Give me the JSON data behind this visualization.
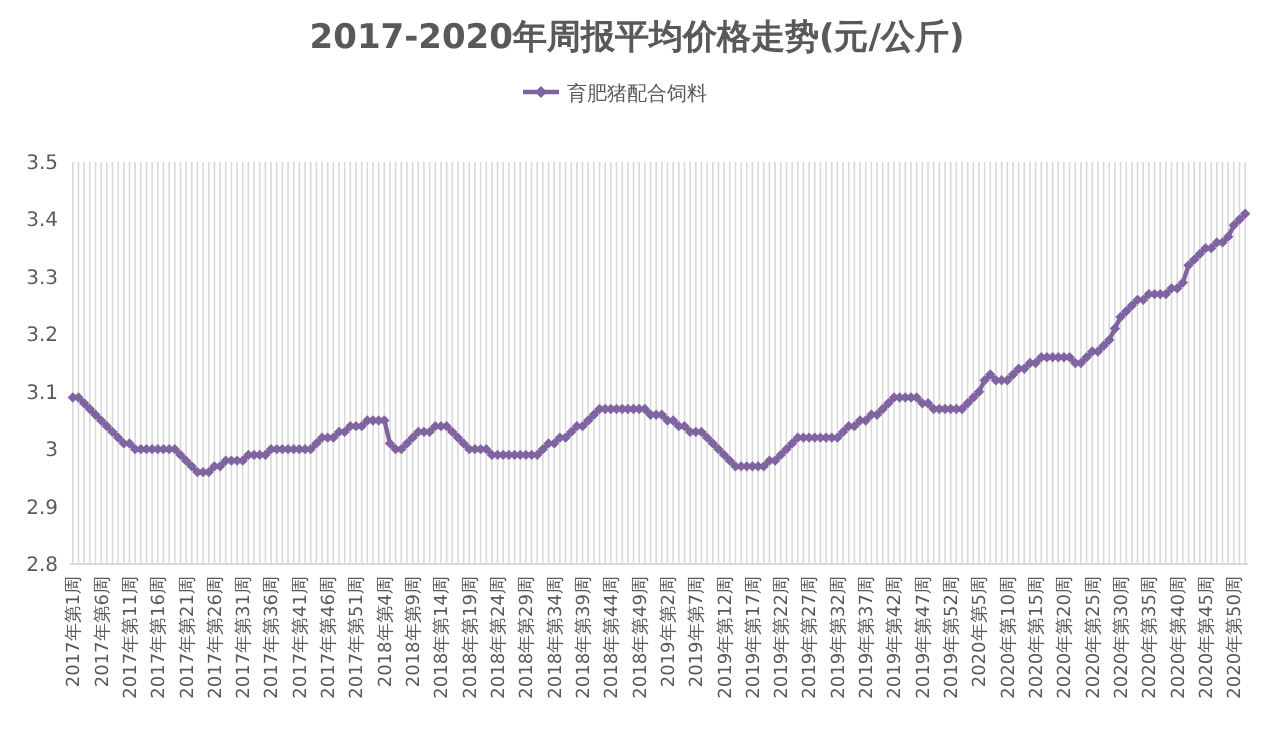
{
  "chart_data": {
    "type": "line",
    "title": "2017-2020年周报平均价格走势(元/公斤)",
    "categories": [
      "2017年第1周",
      null,
      null,
      null,
      null,
      "2017年第6周",
      null,
      null,
      null,
      null,
      "2017年第11周",
      null,
      null,
      null,
      null,
      "2017年第16周",
      null,
      null,
      null,
      null,
      "2017年第21周",
      null,
      null,
      null,
      null,
      "2017年第26周",
      null,
      null,
      null,
      null,
      "2017年第31周",
      null,
      null,
      null,
      null,
      "2017年第36周",
      null,
      null,
      null,
      null,
      "2017年第41周",
      null,
      null,
      null,
      null,
      "2017年第46周",
      null,
      null,
      null,
      null,
      "2017年第51周",
      null,
      null,
      null,
      null,
      "2018年第4周",
      null,
      null,
      null,
      null,
      "2018年第9周",
      null,
      null,
      null,
      null,
      "2018年第14周",
      null,
      null,
      null,
      null,
      "2018年第19周",
      null,
      null,
      null,
      null,
      "2018年第24周",
      null,
      null,
      null,
      null,
      "2018年第29周",
      null,
      null,
      null,
      null,
      "2018年第34周",
      null,
      null,
      null,
      null,
      "2018年第39周",
      null,
      null,
      null,
      null,
      "2018年第44周",
      null,
      null,
      null,
      null,
      "2018年第49周",
      null,
      null,
      null,
      null,
      "2019年第2周",
      null,
      null,
      null,
      null,
      "2019年第7周",
      null,
      null,
      null,
      null,
      "2019年第12周",
      null,
      null,
      null,
      null,
      "2019年第17周",
      null,
      null,
      null,
      null,
      "2019年第22周",
      null,
      null,
      null,
      null,
      "2019年第27周",
      null,
      null,
      null,
      null,
      "2019年第32周",
      null,
      null,
      null,
      null,
      "2019年第37周",
      null,
      null,
      null,
      null,
      "2019年第42周",
      null,
      null,
      null,
      null,
      "2019年第47周",
      null,
      null,
      null,
      null,
      "2019年第52周",
      null,
      null,
      null,
      null,
      "2020年第5周",
      null,
      null,
      null,
      null,
      "2020年第10周",
      null,
      null,
      null,
      null,
      "2020年第15周",
      null,
      null,
      null,
      null,
      "2020年第20周",
      null,
      null,
      null,
      null,
      "2020年第25周",
      null,
      null,
      null,
      null,
      "2020年第30周",
      null,
      null,
      null,
      null,
      "2020年第35周",
      null,
      null,
      null,
      null,
      "2020年第40周",
      null,
      null,
      null,
      null,
      "2020年第45周",
      null,
      null,
      null,
      null,
      "2020年第50周",
      null,
      null
    ],
    "series": [
      {
        "name": "育肥猪配合饲料",
        "color": "#8064a2",
        "values": [
          3.09,
          3.09,
          3.08,
          3.07,
          3.06,
          3.05,
          3.04,
          3.03,
          3.02,
          3.01,
          3.01,
          3.0,
          3.0,
          3.0,
          3.0,
          3.0,
          3.0,
          3.0,
          3.0,
          2.99,
          2.98,
          2.97,
          2.96,
          2.96,
          2.96,
          2.97,
          2.97,
          2.98,
          2.98,
          2.98,
          2.98,
          2.99,
          2.99,
          2.99,
          2.99,
          3.0,
          3.0,
          3.0,
          3.0,
          3.0,
          3.0,
          3.0,
          3.0,
          3.01,
          3.02,
          3.02,
          3.02,
          3.03,
          3.03,
          3.04,
          3.04,
          3.04,
          3.05,
          3.05,
          3.05,
          3.05,
          3.01,
          3.0,
          3.0,
          3.01,
          3.02,
          3.03,
          3.03,
          3.03,
          3.04,
          3.04,
          3.04,
          3.03,
          3.02,
          3.01,
          3.0,
          3.0,
          3.0,
          3.0,
          2.99,
          2.99,
          2.99,
          2.99,
          2.99,
          2.99,
          2.99,
          2.99,
          2.99,
          3.0,
          3.01,
          3.01,
          3.02,
          3.02,
          3.03,
          3.04,
          3.04,
          3.05,
          3.06,
          3.07,
          3.07,
          3.07,
          3.07,
          3.07,
          3.07,
          3.07,
          3.07,
          3.07,
          3.06,
          3.06,
          3.06,
          3.05,
          3.05,
          3.04,
          3.04,
          3.03,
          3.03,
          3.03,
          3.02,
          3.01,
          3.0,
          2.99,
          2.98,
          2.97,
          2.97,
          2.97,
          2.97,
          2.97,
          2.97,
          2.98,
          2.98,
          2.99,
          3.0,
          3.01,
          3.02,
          3.02,
          3.02,
          3.02,
          3.02,
          3.02,
          3.02,
          3.02,
          3.03,
          3.04,
          3.04,
          3.05,
          3.05,
          3.06,
          3.06,
          3.07,
          3.08,
          3.09,
          3.09,
          3.09,
          3.09,
          3.09,
          3.08,
          3.08,
          3.07,
          3.07,
          3.07,
          3.07,
          3.07,
          3.07,
          3.08,
          3.09,
          3.1,
          3.12,
          3.13,
          3.12,
          3.12,
          3.12,
          3.13,
          3.14,
          3.14,
          3.15,
          3.15,
          3.16,
          3.16,
          3.16,
          3.16,
          3.16,
          3.16,
          3.15,
          3.15,
          3.16,
          3.17,
          3.17,
          3.18,
          3.19,
          3.21,
          3.23,
          3.24,
          3.25,
          3.26,
          3.26,
          3.27,
          3.27,
          3.27,
          3.27,
          3.28,
          3.28,
          3.29,
          3.32,
          3.33,
          3.34,
          3.35,
          3.35,
          3.36,
          3.36,
          3.37,
          3.39,
          3.4,
          3.41
        ]
      }
    ],
    "ylim": [
      2.8,
      3.5
    ],
    "yticks": [
      2.8,
      2.9,
      3,
      3.1,
      3.2,
      3.3,
      3.4,
      3.5
    ],
    "grid": "x",
    "legend": "top",
    "marker": "diamond"
  }
}
